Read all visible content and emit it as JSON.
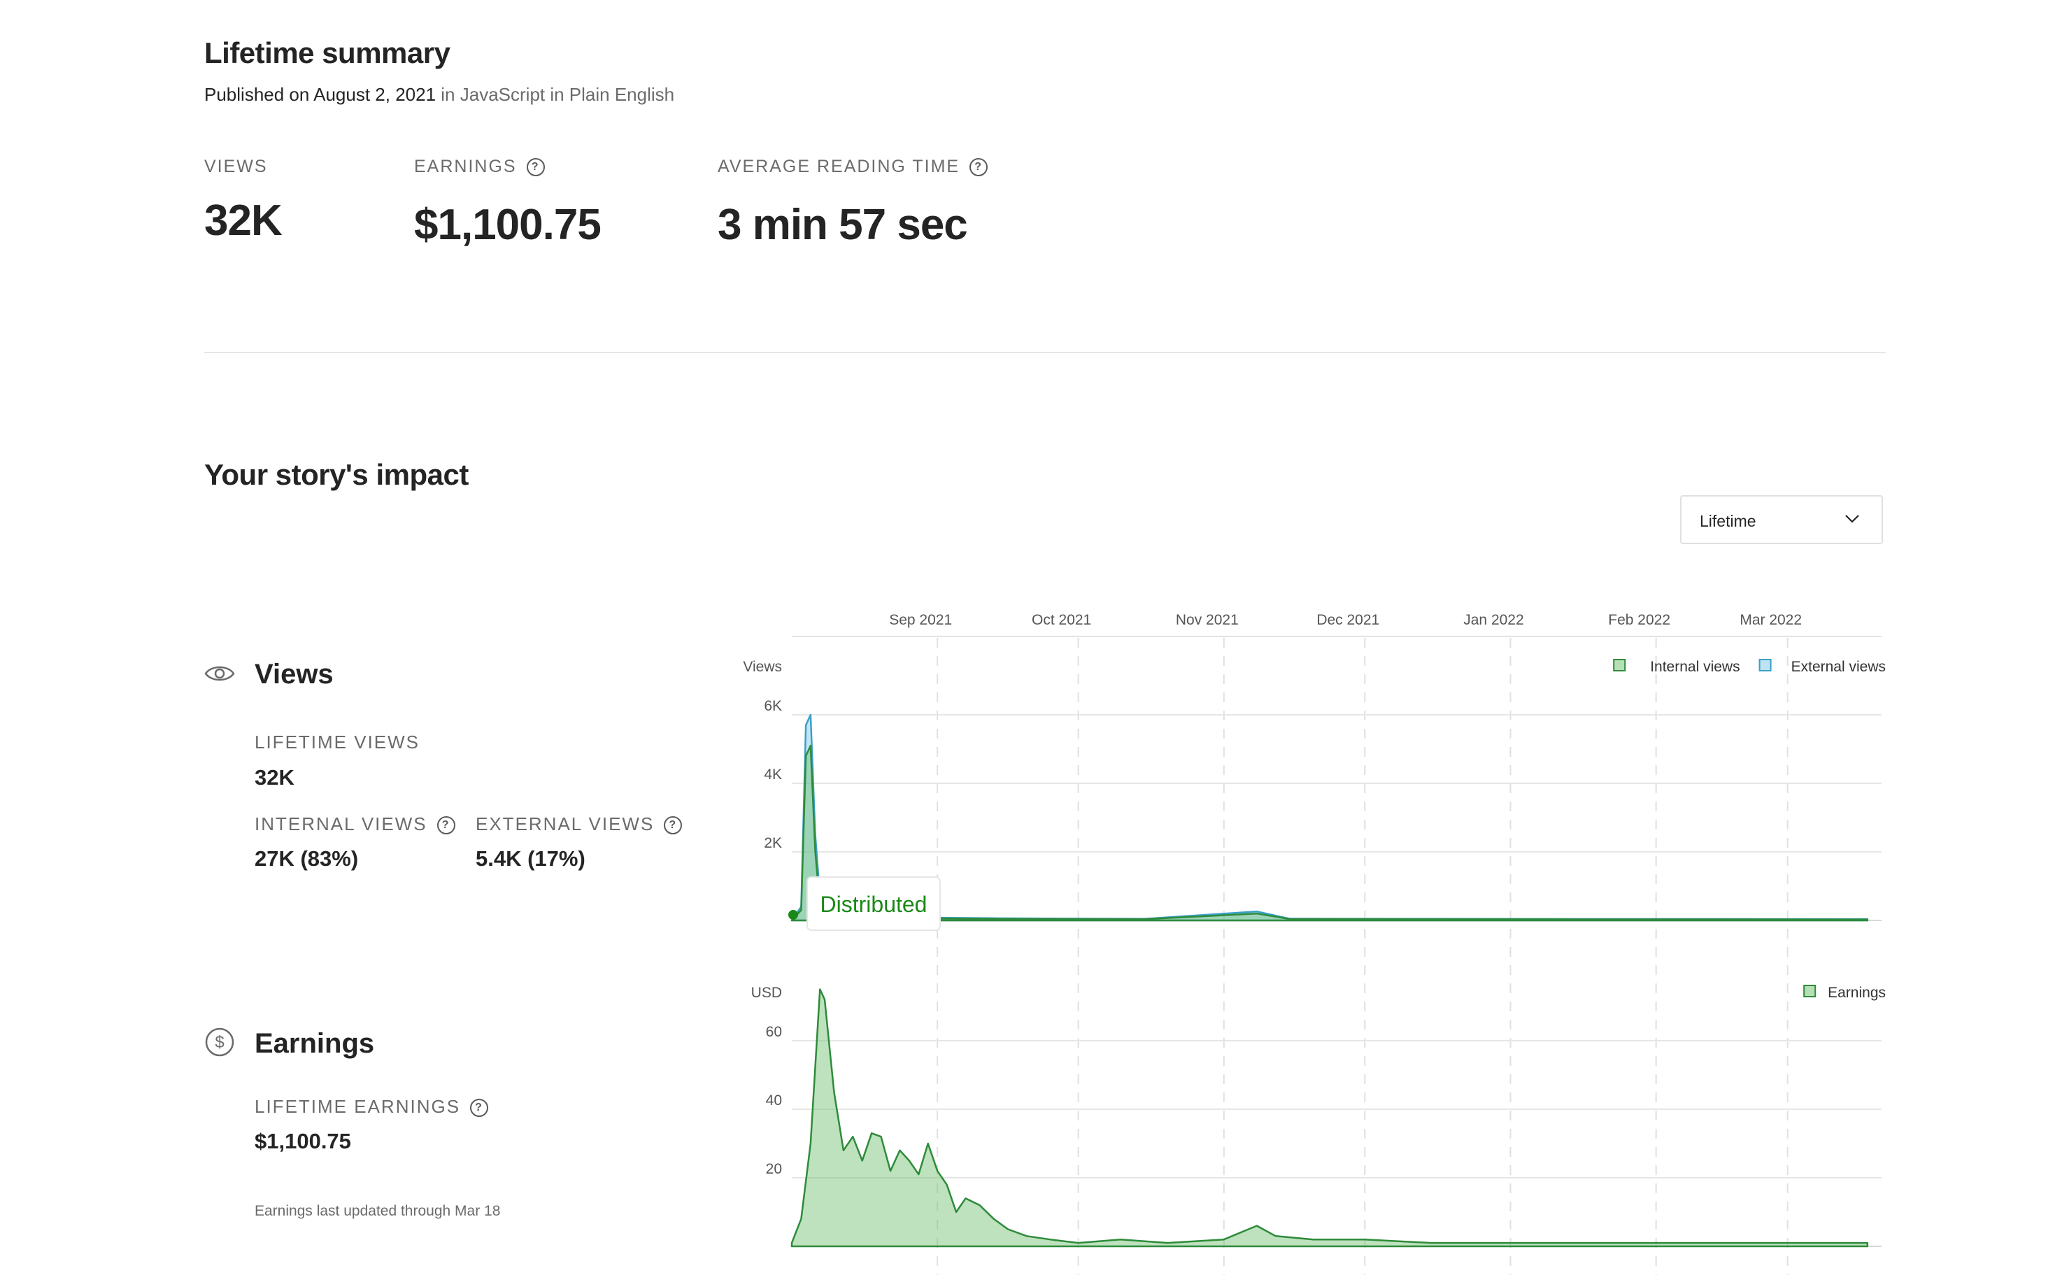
{
  "summary": {
    "title": "Lifetime summary",
    "published_prefix": "Published on August 2, 2021",
    "published_in": "in JavaScript in Plain English",
    "stats": [
      {
        "label": "VIEWS",
        "value": "32K"
      },
      {
        "label": "EARNINGS",
        "value": "$1,100.75"
      },
      {
        "label": "AVERAGE READING TIME",
        "value": "3 min 57 sec"
      }
    ]
  },
  "impact": {
    "title": "Your story's impact",
    "period_dropdown": {
      "selected": "Lifetime"
    },
    "views": {
      "title": "Views",
      "lifetime_label": "LIFETIME VIEWS",
      "lifetime_value": "32K",
      "internal_label": "INTERNAL VIEWS",
      "internal_value": "27K (83%)",
      "external_label": "EXTERNAL VIEWS",
      "external_value": "5.4K (17%)"
    },
    "earnings": {
      "title": "Earnings",
      "lifetime_label": "LIFETIME EARNINGS",
      "lifetime_value": "$1,100.75",
      "note": "Earnings last updated through Mar 18"
    }
  },
  "chart_data": [
    {
      "type": "area",
      "ylabel": "Views",
      "x_axis_labels": [
        "Sep 2021",
        "Oct 2021",
        "Nov 2021",
        "Dec 2021",
        "Jan 2022",
        "Feb 2022",
        "Mar 2022"
      ],
      "y_ticks": [
        "6K",
        "4K",
        "2K"
      ],
      "ylim": [
        0,
        6000
      ],
      "series": [
        {
          "name": "Internal views",
          "color": "#6cbf6c",
          "x": [
            "2021-08-01",
            "2021-08-02",
            "2021-08-03",
            "2021-08-04",
            "2021-08-05",
            "2021-08-06",
            "2021-08-07",
            "2021-08-08",
            "2021-08-10",
            "2021-08-15",
            "2021-08-25",
            "2021-09-15",
            "2021-10-15",
            "2021-11-08",
            "2021-11-15",
            "2021-12-15",
            "2022-01-15",
            "2022-02-15",
            "2022-03-18"
          ],
          "values": [
            0,
            150,
            300,
            4800,
            5100,
            2000,
            450,
            200,
            120,
            80,
            60,
            45,
            35,
            200,
            40,
            35,
            30,
            30,
            25
          ]
        },
        {
          "name": "External views",
          "color": "#7cc7e6",
          "x": [
            "2021-08-01",
            "2021-08-02",
            "2021-08-03",
            "2021-08-04",
            "2021-08-05",
            "2021-08-06",
            "2021-08-07",
            "2021-08-08",
            "2021-08-10",
            "2021-08-15",
            "2021-08-25",
            "2021-09-15",
            "2021-10-15",
            "2021-11-08",
            "2021-11-15",
            "2021-12-15",
            "2022-01-15",
            "2022-02-15",
            "2022-03-18"
          ],
          "values": [
            0,
            200,
            400,
            5700,
            6000,
            2500,
            700,
            350,
            260,
            160,
            90,
            60,
            45,
            260,
            50,
            45,
            40,
            40,
            35
          ]
        }
      ],
      "annotation": {
        "label": "Distributed",
        "x": "2021-08-01"
      },
      "legend": "top-right"
    },
    {
      "type": "area",
      "ylabel": "USD",
      "y_ticks": [
        "60",
        "40",
        "20"
      ],
      "ylim": [
        0,
        80
      ],
      "series": [
        {
          "name": "Earnings",
          "color": "#6cbf6c",
          "x": [
            "2021-08-01",
            "2021-08-03",
            "2021-08-05",
            "2021-08-07",
            "2021-08-08",
            "2021-08-10",
            "2021-08-12",
            "2021-08-14",
            "2021-08-16",
            "2021-08-18",
            "2021-08-20",
            "2021-08-22",
            "2021-08-24",
            "2021-08-26",
            "2021-08-28",
            "2021-08-30",
            "2021-09-01",
            "2021-09-03",
            "2021-09-05",
            "2021-09-07",
            "2021-09-10",
            "2021-09-13",
            "2021-09-16",
            "2021-09-20",
            "2021-09-25",
            "2021-10-01",
            "2021-10-10",
            "2021-10-20",
            "2021-11-01",
            "2021-11-08",
            "2021-11-12",
            "2021-11-20",
            "2021-12-01",
            "2021-12-15",
            "2022-01-01",
            "2022-01-15",
            "2022-02-01",
            "2022-02-15",
            "2022-03-01",
            "2022-03-18"
          ],
          "values": [
            1,
            8,
            30,
            75,
            72,
            45,
            28,
            32,
            25,
            33,
            32,
            22,
            28,
            25,
            21,
            30,
            22,
            18,
            10,
            14,
            12,
            8,
            5,
            3,
            2,
            1,
            2,
            1,
            2,
            6,
            3,
            2,
            2,
            1,
            1,
            1,
            1,
            1,
            1,
            1
          ]
        }
      ],
      "legend": "top-right"
    }
  ]
}
